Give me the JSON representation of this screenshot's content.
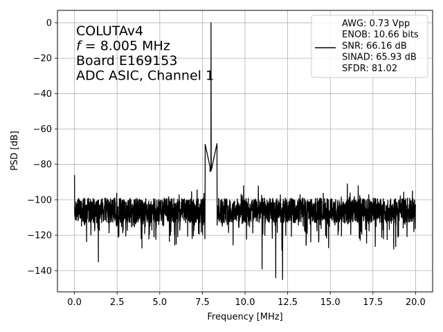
{
  "chart_data": {
    "type": "line",
    "title": "",
    "xlabel": "Frequency [MHz]",
    "ylabel": "PSD [dB]",
    "xlim": [
      -1.0,
      21.0
    ],
    "ylim": [
      -152,
      7
    ],
    "grid": true,
    "x_ticks": [
      0.0,
      2.5,
      5.0,
      7.5,
      10.0,
      12.5,
      15.0,
      17.5,
      20.0
    ],
    "x_tick_labels": [
      "0.0",
      "2.5",
      "5.0",
      "7.5",
      "10.0",
      "12.5",
      "15.0",
      "17.5",
      "20.0"
    ],
    "y_ticks": [
      0,
      -20,
      -40,
      -60,
      -80,
      -100,
      -120,
      -140
    ],
    "y_tick_labels": [
      "0",
      "−20",
      "−40",
      "−60",
      "−80",
      "−100",
      "−120",
      "−140"
    ],
    "annotation_lines": [
      {
        "text": "COLUTAv4"
      },
      {
        "italic": "f",
        "text": " = 8.005 MHz"
      },
      {
        "text": "Board E169153"
      },
      {
        "text": "ADC ASIC, Channel  1"
      }
    ],
    "legend": {
      "placement": "top-right",
      "lines": [
        "AWG: 0.73 Vpp",
        "ENOB: 10.66 bits",
        "SNR: 66.16 dB",
        "SINAD: 65.93 dB",
        "SFDR: 81.02"
      ]
    },
    "series": [
      {
        "color": "#000000",
        "noise_floor": {
          "x_range": [
            0.0,
            20.0
          ],
          "median_db": -106,
          "band_db": [
            -120,
            -95
          ]
        },
        "features": [
          {
            "x": 0.0,
            "y": -86
          },
          {
            "x": 7.95,
            "y": -84
          },
          {
            "x": 8.005,
            "y": 0
          },
          {
            "x": 8.06,
            "y": -82
          },
          {
            "x": 16.0,
            "y": -91
          },
          {
            "x": 1.4,
            "y": -135
          },
          {
            "x": 11.0,
            "y": -139
          },
          {
            "x": 11.8,
            "y": -144
          },
          {
            "x": 12.2,
            "y": -145
          }
        ]
      }
    ]
  }
}
